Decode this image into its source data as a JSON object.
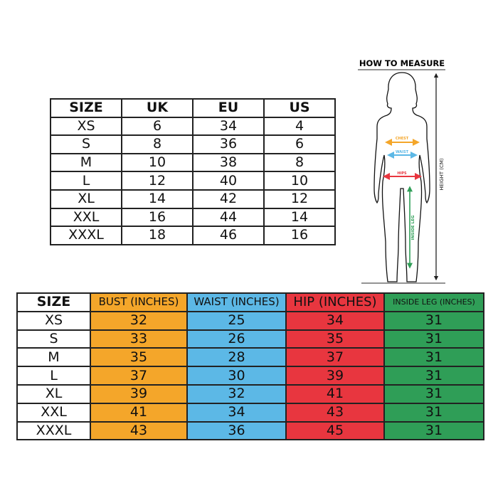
{
  "conversion_table": {
    "headers": [
      "SIZE",
      "UK",
      "EU",
      "US"
    ],
    "rows": [
      [
        "XS",
        "6",
        "34",
        "4"
      ],
      [
        "S",
        "8",
        "36",
        "6"
      ],
      [
        "M",
        "10",
        "38",
        "8"
      ],
      [
        "L",
        "12",
        "40",
        "10"
      ],
      [
        "XL",
        "14",
        "42",
        "12"
      ],
      [
        "XXL",
        "16",
        "44",
        "14"
      ],
      [
        "XXXL",
        "18",
        "46",
        "16"
      ]
    ]
  },
  "measure_table": {
    "headers": [
      "SIZE",
      "BUST (INCHES)",
      "WAIST (INCHES)",
      "HIP (INCHES)",
      "INSIDE LEG (INCHES)"
    ],
    "colors": [
      "#ffffff",
      "#f4a62a",
      "#5cb8e6",
      "#e8363f",
      "#2f9e57"
    ],
    "rows": [
      [
        "XS",
        "32",
        "25",
        "34",
        "31"
      ],
      [
        "S",
        "33",
        "26",
        "35",
        "31"
      ],
      [
        "M",
        "35",
        "28",
        "37",
        "31"
      ],
      [
        "L",
        "37",
        "30",
        "39",
        "31"
      ],
      [
        "XL",
        "39",
        "32",
        "41",
        "31"
      ],
      [
        "XXL",
        "41",
        "34",
        "43",
        "31"
      ],
      [
        "XXXL",
        "43",
        "36",
        "45",
        "31"
      ]
    ]
  },
  "figure": {
    "title": "HOW TO MEASURE",
    "chest": "CHEST",
    "waist": "WAIST",
    "hips": "HIPS",
    "inside_leg": "INSIDE LEG",
    "height": "HEIGHT (CM)",
    "colors": {
      "chest": "#f4a62a",
      "waist": "#5cb8e6",
      "hips": "#e8363f",
      "inside_leg": "#2f9e57"
    }
  }
}
